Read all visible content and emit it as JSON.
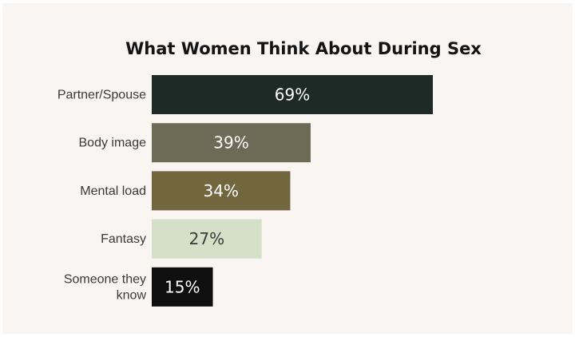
{
  "chart_data": {
    "type": "bar",
    "orientation": "horizontal",
    "title": "What Women Think About During Sex",
    "categories": [
      [
        "Partner/Spouse"
      ],
      [
        "Body image"
      ],
      [
        "Mental load"
      ],
      [
        "Fantasy"
      ],
      [
        "Someone they",
        "know"
      ]
    ],
    "values": [
      69,
      39,
      34,
      27,
      15
    ],
    "value_labels": [
      "69%",
      "39%",
      "34%",
      "27%",
      "15%"
    ],
    "xlabel": "",
    "ylabel": "",
    "xlim": [
      0,
      100
    ],
    "grid": false,
    "legend": "none"
  },
  "colors": {
    "background": "#f8f5f2",
    "bars": [
      "#1d2a25",
      "#6d6a56",
      "#72663f",
      "#d6e0c9",
      "#0f0f0f"
    ],
    "bar_label_colors": [
      "#ffffff",
      "#ffffff",
      "#ffffff",
      "#3a3a3a",
      "#ffffff"
    ]
  }
}
